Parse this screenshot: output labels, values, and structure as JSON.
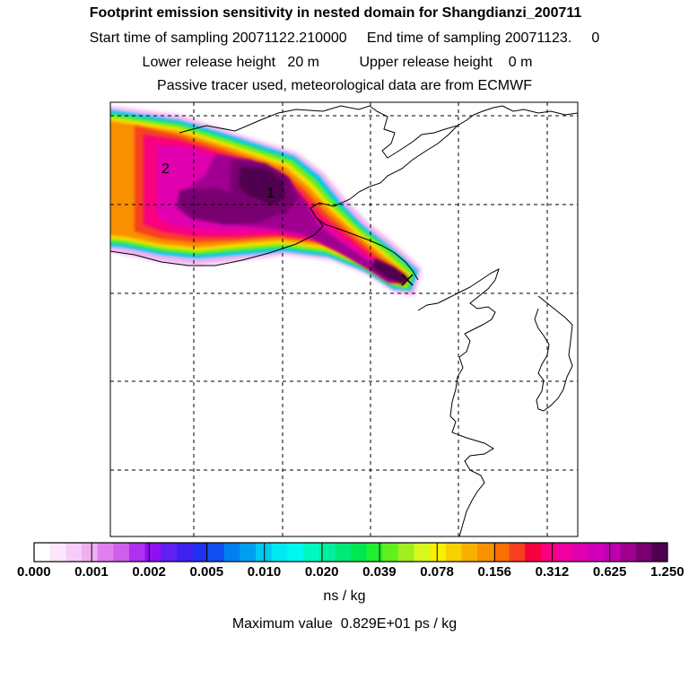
{
  "header": {
    "title": "Footprint emission sensitivity in nested domain for Shangdianzi_200711",
    "sampling": "Start time of sampling 20071122.210000     End time of sampling 20071123.     0",
    "release": "Lower release height   20 m          Upper release height    0 m",
    "tracer": "Passive tracer used, meteorological data are from ECMWF"
  },
  "map": {
    "labels": [
      {
        "text": "1",
        "name": "peak-label-1"
      },
      {
        "text": "2",
        "name": "peak-label-2"
      }
    ],
    "station_marker": "receptor-x-icon"
  },
  "colorbar": {
    "tick_labels": [
      "0.000",
      "0.001",
      "0.002",
      "0.005",
      "0.010",
      "0.020",
      "0.039",
      "0.078",
      "0.156",
      "0.312",
      "0.625",
      "1.250"
    ],
    "colors": [
      "#ffffff",
      "#fde6fd",
      "#f8ccf8",
      "#f0b0f0",
      "#e080f0",
      "#d060ec",
      "#b030f0",
      "#9010f0",
      "#6020f0",
      "#4020f0",
      "#2030f0",
      "#1050f0",
      "#0080f0",
      "#00a0f0",
      "#00c8f0",
      "#00e8f0",
      "#00f8f0",
      "#00f8c0",
      "#00f0a0",
      "#00e878",
      "#00e850",
      "#20f030",
      "#60f020",
      "#a0f020",
      "#d8f820",
      "#f8f000",
      "#f8d000",
      "#f8b000",
      "#f89000",
      "#f87000",
      "#f84020",
      "#f80040",
      "#f80080",
      "#f000a0",
      "#e000b0",
      "#d000b8",
      "#c000b0",
      "#a00090",
      "#780070",
      "#500050"
    ],
    "units": "ns / kg"
  },
  "footer": {
    "max_value": "Maximum value  0.829E+01 ps / kg"
  }
}
